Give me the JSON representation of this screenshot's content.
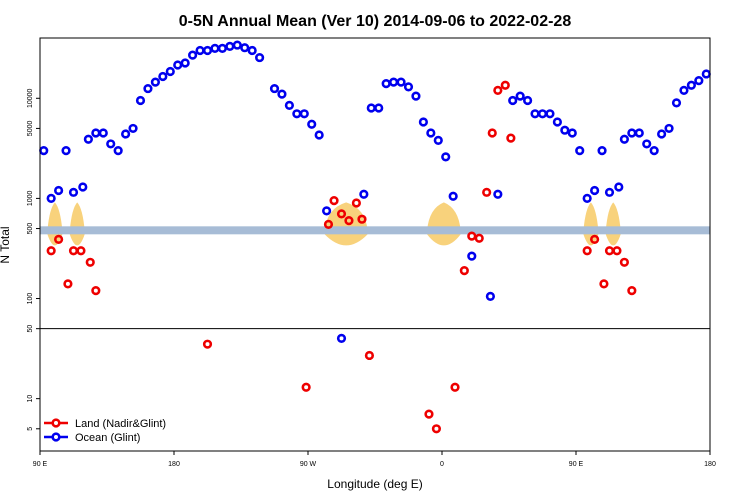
{
  "chart_data": {
    "type": "scatter",
    "title": "0-5N Annual Mean (Ver 10)   2014-09-06 to 2022-02-28",
    "xlabel": "Longitude (deg E)",
    "ylabel": "N Total",
    "y_scale": "log",
    "xlim": [
      0,
      360
    ],
    "ylim": [
      3,
      40000
    ],
    "x_ticks": [
      {
        "value": 0,
        "label": "90 E"
      },
      {
        "value": 72,
        "label": "180"
      },
      {
        "value": 144,
        "label": "90 W"
      },
      {
        "value": 216,
        "label": "0"
      },
      {
        "value": 288,
        "label": "90 E"
      },
      {
        "value": 360,
        "label": "180"
      }
    ],
    "y_ticks": [
      {
        "value": 5,
        "label": "5"
      },
      {
        "value": 10,
        "label": "10"
      },
      {
        "value": 50,
        "label": "50"
      },
      {
        "value": 100,
        "label": "100"
      },
      {
        "value": 500,
        "label": "500"
      },
      {
        "value": 1000,
        "label": "1000"
      },
      {
        "value": 5000,
        "label": "5000"
      },
      {
        "value": 10000,
        "label": "10000"
      }
    ],
    "reference_line": 50,
    "land_strip": {
      "value": 480,
      "color": "#a7bcd6"
    },
    "legend": {
      "position": "bottom-left"
    },
    "series": [
      {
        "name": "Land (Nadir&Glint)",
        "color": "#ee0000",
        "points": [
          [
            6,
            300
          ],
          [
            10,
            390
          ],
          [
            15,
            140
          ],
          [
            18,
            300
          ],
          [
            22,
            300
          ],
          [
            27,
            230
          ],
          [
            30,
            120
          ],
          [
            90,
            35
          ],
          [
            143,
            13
          ],
          [
            155,
            550
          ],
          [
            158,
            950
          ],
          [
            162,
            700
          ],
          [
            166,
            600
          ],
          [
            170,
            900
          ],
          [
            173,
            620
          ],
          [
            177,
            27
          ],
          [
            209,
            7
          ],
          [
            213,
            5
          ],
          [
            223,
            13
          ],
          [
            228,
            190
          ],
          [
            232,
            420
          ],
          [
            236,
            400
          ],
          [
            240,
            1150
          ],
          [
            243,
            4500
          ],
          [
            246,
            12000
          ],
          [
            250,
            13500
          ],
          [
            253,
            4000
          ],
          [
            294,
            300
          ],
          [
            298,
            390
          ],
          [
            303,
            140
          ],
          [
            306,
            300
          ],
          [
            310,
            300
          ],
          [
            314,
            230
          ],
          [
            318,
            120
          ]
        ]
      },
      {
        "name": "Ocean (Glint)",
        "color": "#0000ee",
        "points": [
          [
            2,
            3000
          ],
          [
            6,
            1000
          ],
          [
            10,
            1200
          ],
          [
            14,
            3000
          ],
          [
            18,
            1150
          ],
          [
            23,
            1300
          ],
          [
            26,
            3900
          ],
          [
            30,
            4500
          ],
          [
            34,
            4500
          ],
          [
            38,
            3500
          ],
          [
            42,
            3000
          ],
          [
            46,
            4400
          ],
          [
            50,
            5000
          ],
          [
            54,
            9500
          ],
          [
            58,
            12500
          ],
          [
            62,
            14500
          ],
          [
            66,
            16500
          ],
          [
            70,
            18500
          ],
          [
            74,
            21500
          ],
          [
            78,
            22500
          ],
          [
            82,
            27000
          ],
          [
            86,
            30000
          ],
          [
            90,
            30000
          ],
          [
            94,
            31500
          ],
          [
            98,
            31500
          ],
          [
            102,
            33000
          ],
          [
            106,
            34000
          ],
          [
            110,
            32000
          ],
          [
            114,
            30000
          ],
          [
            118,
            25500
          ],
          [
            126,
            12500
          ],
          [
            130,
            11000
          ],
          [
            134,
            8500
          ],
          [
            138,
            7000
          ],
          [
            142,
            7000
          ],
          [
            146,
            5500
          ],
          [
            150,
            4300
          ],
          [
            154,
            750
          ],
          [
            162,
            40
          ],
          [
            174,
            1100
          ],
          [
            178,
            8000
          ],
          [
            182,
            8000
          ],
          [
            186,
            14000
          ],
          [
            190,
            14500
          ],
          [
            194,
            14500
          ],
          [
            198,
            13000
          ],
          [
            202,
            10500
          ],
          [
            206,
            5800
          ],
          [
            210,
            4500
          ],
          [
            214,
            3800
          ],
          [
            218,
            2600
          ],
          [
            222,
            1050
          ],
          [
            232,
            265
          ],
          [
            242,
            105
          ],
          [
            246,
            1100
          ],
          [
            254,
            9500
          ],
          [
            258,
            10500
          ],
          [
            262,
            9500
          ],
          [
            266,
            7000
          ],
          [
            270,
            7000
          ],
          [
            274,
            7000
          ],
          [
            278,
            5800
          ],
          [
            282,
            4800
          ],
          [
            286,
            4500
          ],
          [
            290,
            3000
          ],
          [
            294,
            1000
          ],
          [
            298,
            1200
          ],
          [
            302,
            3000
          ],
          [
            306,
            1150
          ],
          [
            311,
            1300
          ],
          [
            314,
            3900
          ],
          [
            318,
            4500
          ],
          [
            322,
            4500
          ],
          [
            326,
            3500
          ],
          [
            330,
            3000
          ],
          [
            334,
            4400
          ],
          [
            338,
            5000
          ],
          [
            342,
            9000
          ],
          [
            346,
            12000
          ],
          [
            350,
            13500
          ],
          [
            354,
            15000
          ],
          [
            358,
            17500
          ]
        ]
      }
    ]
  }
}
